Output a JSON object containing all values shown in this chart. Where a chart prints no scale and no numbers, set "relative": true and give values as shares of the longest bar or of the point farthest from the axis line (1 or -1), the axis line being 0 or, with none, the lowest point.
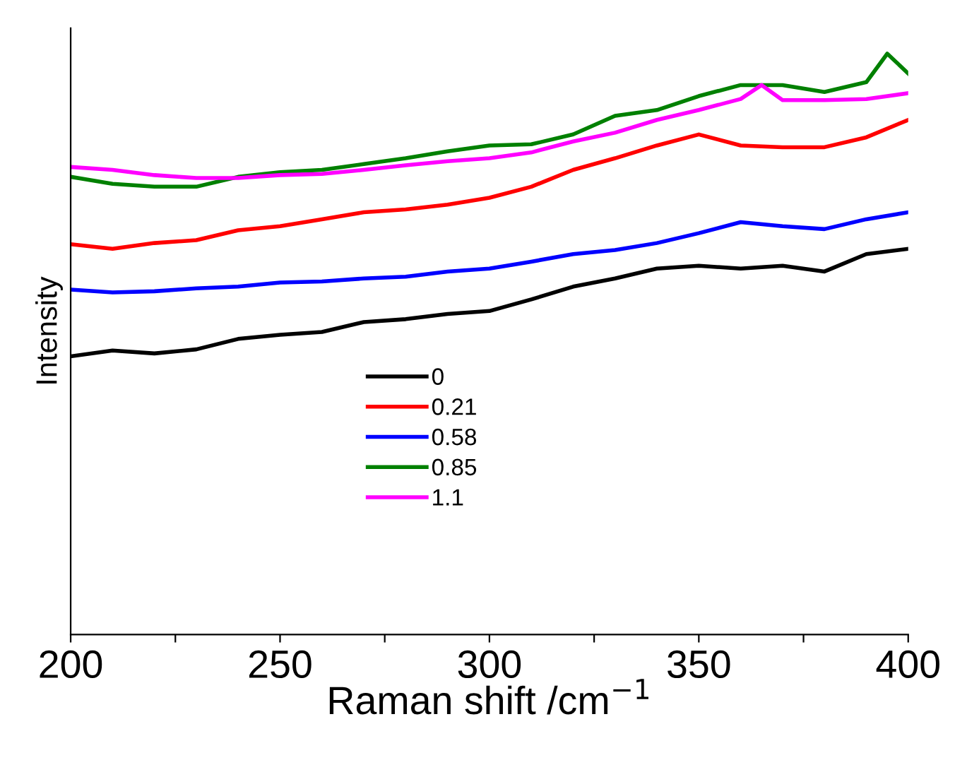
{
  "chart_data": {
    "type": "line",
    "relative": true,
    "xlabel": "Raman shift /cm$^{−1}$",
    "ylabel": "Intensity",
    "x": [
      200,
      210,
      220,
      230,
      240,
      250,
      260,
      270,
      280,
      290,
      300,
      310,
      320,
      330,
      340,
      350,
      360,
      370,
      380,
      390,
      400
    ],
    "xlim": [
      200,
      400
    ],
    "xticks": [
      200,
      {
        "value": 225,
        "label": null
      },
      250,
      {
        "value": 275,
        "label": null
      },
      300,
      {
        "value": 325,
        "label": null
      },
      350,
      {
        "value": 375,
        "label": null
      },
      400
    ],
    "tick_labels": "x",
    "legend": "bottom",
    "line_style": "solid",
    "series": [
      {
        "name": "0",
        "color": "#000000",
        "values": [
          0.479,
          0.489,
          0.484,
          0.491,
          0.509,
          0.516,
          0.521,
          0.538,
          0.543,
          0.552,
          0.557,
          0.577,
          0.599,
          0.613,
          0.63,
          0.635,
          0.63,
          0.635,
          0.625,
          0.655,
          0.664
        ]
      },
      {
        "name": "0.21",
        "color": "#ff0000",
        "values": [
          0.672,
          0.664,
          0.674,
          0.679,
          0.696,
          0.703,
          0.715,
          0.727,
          0.732,
          0.74,
          0.752,
          0.771,
          0.8,
          0.82,
          0.842,
          0.861,
          0.842,
          0.839,
          0.839,
          0.856,
          0.886
        ]
      },
      {
        "name": "0.58",
        "color": "#0000ff",
        "values": [
          0.594,
          0.589,
          0.591,
          0.596,
          0.599,
          0.606,
          0.608,
          0.613,
          0.616,
          0.625,
          0.63,
          0.642,
          0.655,
          0.662,
          0.674,
          0.691,
          0.71,
          0.703,
          0.698,
          0.715,
          0.727
        ]
      },
      {
        "name": "0.85",
        "color": "#008000",
        "x": [
          200,
          210,
          220,
          230,
          240,
          250,
          260,
          270,
          280,
          290,
          300,
          310,
          320,
          330,
          340,
          350,
          360,
          370,
          380,
          390,
          395,
          400
        ],
        "values": [
          0.788,
          0.776,
          0.771,
          0.771,
          0.788,
          0.796,
          0.8,
          0.81,
          0.82,
          0.832,
          0.842,
          0.844,
          0.861,
          0.893,
          0.903,
          0.927,
          0.946,
          0.946,
          0.934,
          0.951,
          1.0,
          0.966
        ]
      },
      {
        "name": "1.1",
        "color": "#ff00ff",
        "x": [
          200,
          210,
          220,
          230,
          240,
          250,
          260,
          270,
          280,
          290,
          300,
          310,
          320,
          330,
          340,
          350,
          360,
          365,
          370,
          380,
          390,
          400
        ],
        "values": [
          0.805,
          0.8,
          0.791,
          0.786,
          0.786,
          0.791,
          0.793,
          0.8,
          0.808,
          0.815,
          0.82,
          0.83,
          0.849,
          0.864,
          0.886,
          0.903,
          0.922,
          0.946,
          0.92,
          0.92,
          0.922,
          0.932
        ]
      }
    ]
  }
}
